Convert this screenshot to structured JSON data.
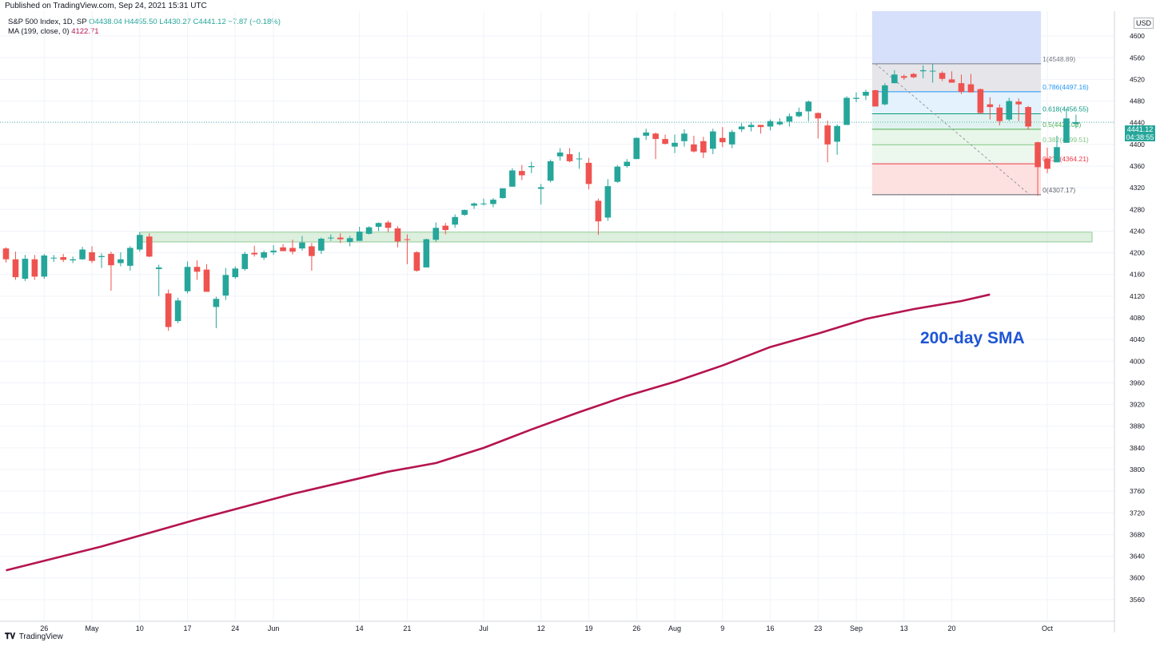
{
  "header": {
    "published": "Published on TradingView.com, Sep 24, 2021 15:31 UTC"
  },
  "legend": {
    "symbol": "S&P 500 Index, 1D, SP",
    "open": "O4438.04",
    "high": "H4455.50",
    "low": "L4430.27",
    "close": "C4441.12",
    "change": "−7.87 (−0.18%)",
    "ma_label": "MA (199, close, 0)",
    "ma_value": "4122.71"
  },
  "currency": "USD",
  "current_price": {
    "price": "4441.12",
    "countdown": "04:38:55"
  },
  "annotation": "200-day SMA",
  "footer": {
    "brand": "TradingView"
  },
  "colors": {
    "up": "#26a69a",
    "down": "#ef5350",
    "ma": "#b5144f",
    "annotation": "#1e55d6",
    "grid": "#f0f3fa"
  },
  "chart_data": {
    "type": "candlestick",
    "ylim": [
      3520,
      4640
    ],
    "y_ticks": [
      3560,
      3600,
      3640,
      3680,
      3720,
      3760,
      3800,
      3840,
      3880,
      3920,
      3960,
      4000,
      4040,
      4080,
      4120,
      4160,
      4200,
      4240,
      4280,
      4320,
      4360,
      4400,
      4440,
      4480,
      4520,
      4560,
      4600
    ],
    "x_tick_labels": [
      {
        "label": "26",
        "i": 4
      },
      {
        "label": "May",
        "i": 9
      },
      {
        "label": "10",
        "i": 14
      },
      {
        "label": "17",
        "i": 19
      },
      {
        "label": "24",
        "i": 24
      },
      {
        "label": "Jun",
        "i": 28
      },
      {
        "label": "14",
        "i": 37
      },
      {
        "label": "21",
        "i": 42
      },
      {
        "label": "Jul",
        "i": 50
      },
      {
        "label": "12",
        "i": 56
      },
      {
        "label": "19",
        "i": 61
      },
      {
        "label": "26",
        "i": 66
      },
      {
        "label": "Aug",
        "i": 70
      },
      {
        "label": "9",
        "i": 75
      },
      {
        "label": "16",
        "i": 80
      },
      {
        "label": "23",
        "i": 85
      },
      {
        "label": "Sep",
        "i": 89
      },
      {
        "label": "13",
        "i": 94
      },
      {
        "label": "20",
        "i": 99
      },
      {
        "label": "Oct",
        "i": 109
      }
    ],
    "candles": [
      {
        "o": 4208,
        "h": 4210,
        "l": 4182,
        "c": 4188
      },
      {
        "o": 4188,
        "h": 4202,
        "l": 4150,
        "c": 4155
      },
      {
        "o": 4152,
        "h": 4196,
        "l": 4148,
        "c": 4189
      },
      {
        "o": 4188,
        "h": 4196,
        "l": 4150,
        "c": 4156
      },
      {
        "o": 4156,
        "h": 4198,
        "l": 4152,
        "c": 4195
      },
      {
        "o": 4190,
        "h": 4196,
        "l": 4183,
        "c": 4191
      },
      {
        "o": 4192,
        "h": 4198,
        "l": 4183,
        "c": 4187
      },
      {
        "o": 4186,
        "h": 4193,
        "l": 4181,
        "c": 4188
      },
      {
        "o": 4188,
        "h": 4211,
        "l": 4187,
        "c": 4206
      },
      {
        "o": 4201,
        "h": 4212,
        "l": 4181,
        "c": 4185
      },
      {
        "o": 4192,
        "h": 4199,
        "l": 4172,
        "c": 4194
      },
      {
        "o": 4198,
        "h": 4202,
        "l": 4130,
        "c": 4177
      },
      {
        "o": 4181,
        "h": 4201,
        "l": 4175,
        "c": 4188
      },
      {
        "o": 4176,
        "h": 4212,
        "l": 4167,
        "c": 4209
      },
      {
        "o": 4206,
        "h": 4238,
        "l": 4202,
        "c": 4233
      },
      {
        "o": 4230,
        "h": 4236,
        "l": 4192,
        "c": 4193
      },
      {
        "o": 4170,
        "h": 4178,
        "l": 4120,
        "c": 4173
      },
      {
        "o": 4125,
        "h": 4132,
        "l": 4056,
        "c": 4063
      },
      {
        "o": 4074,
        "h": 4117,
        "l": 4070,
        "c": 4112
      },
      {
        "o": 4129,
        "h": 4184,
        "l": 4125,
        "c": 4174
      },
      {
        "o": 4174,
        "h": 4186,
        "l": 4150,
        "c": 4165
      },
      {
        "o": 4169,
        "h": 4179,
        "l": 4128,
        "c": 4128
      },
      {
        "o": 4100,
        "h": 4119,
        "l": 4061,
        "c": 4115
      },
      {
        "o": 4121,
        "h": 4172,
        "l": 4113,
        "c": 4159
      },
      {
        "o": 4155,
        "h": 4175,
        "l": 4152,
        "c": 4171
      },
      {
        "o": 4170,
        "h": 4202,
        "l": 4167,
        "c": 4198
      },
      {
        "o": 4200,
        "h": 4213,
        "l": 4193,
        "c": 4197
      },
      {
        "o": 4191,
        "h": 4204,
        "l": 4187,
        "c": 4201
      },
      {
        "o": 4201,
        "h": 4214,
        "l": 4196,
        "c": 4204
      },
      {
        "o": 4210,
        "h": 4216,
        "l": 4204,
        "c": 4203
      },
      {
        "o": 4209,
        "h": 4224,
        "l": 4197,
        "c": 4202
      },
      {
        "o": 4208,
        "h": 4231,
        "l": 4204,
        "c": 4219
      },
      {
        "o": 4212,
        "h": 4218,
        "l": 4167,
        "c": 4194
      },
      {
        "o": 4204,
        "h": 4228,
        "l": 4198,
        "c": 4226
      },
      {
        "o": 4227,
        "h": 4234,
        "l": 4222,
        "c": 4228
      },
      {
        "o": 4228,
        "h": 4236,
        "l": 4218,
        "c": 4225
      },
      {
        "o": 4220,
        "h": 4231,
        "l": 4212,
        "c": 4227
      },
      {
        "o": 4222,
        "h": 4248,
        "l": 4222,
        "c": 4239
      },
      {
        "o": 4235,
        "h": 4249,
        "l": 4234,
        "c": 4247
      },
      {
        "o": 4248,
        "h": 4256,
        "l": 4240,
        "c": 4255
      },
      {
        "o": 4256,
        "h": 4259,
        "l": 4238,
        "c": 4246
      },
      {
        "o": 4245,
        "h": 4249,
        "l": 4210,
        "c": 4221
      },
      {
        "o": 4225,
        "h": 4234,
        "l": 4179,
        "c": 4224
      },
      {
        "o": 4201,
        "h": 4203,
        "l": 4165,
        "c": 4167
      },
      {
        "o": 4173,
        "h": 4226,
        "l": 4173,
        "c": 4225
      },
      {
        "o": 4224,
        "h": 4256,
        "l": 4220,
        "c": 4246
      },
      {
        "o": 4250,
        "h": 4255,
        "l": 4234,
        "c": 4242
      },
      {
        "o": 4252,
        "h": 4271,
        "l": 4246,
        "c": 4266
      },
      {
        "o": 4270,
        "h": 4280,
        "l": 4268,
        "c": 4279
      },
      {
        "o": 4287,
        "h": 4293,
        "l": 4281,
        "c": 4291
      },
      {
        "o": 4291,
        "h": 4300,
        "l": 4287,
        "c": 4291
      },
      {
        "o": 4290,
        "h": 4301,
        "l": 4284,
        "c": 4298
      },
      {
        "o": 4301,
        "h": 4319,
        "l": 4300,
        "c": 4319
      },
      {
        "o": 4322,
        "h": 4356,
        "l": 4322,
        "c": 4352
      },
      {
        "o": 4351,
        "h": 4362,
        "l": 4334,
        "c": 4343
      },
      {
        "o": 4358,
        "h": 4368,
        "l": 4347,
        "c": 4360
      },
      {
        "o": 4318,
        "h": 4327,
        "l": 4289,
        "c": 4321
      },
      {
        "o": 4333,
        "h": 4372,
        "l": 4330,
        "c": 4369
      },
      {
        "o": 4378,
        "h": 4393,
        "l": 4370,
        "c": 4385
      },
      {
        "o": 4382,
        "h": 4393,
        "l": 4367,
        "c": 4369
      },
      {
        "o": 4374,
        "h": 4386,
        "l": 4355,
        "c": 4374
      },
      {
        "o": 4366,
        "h": 4375,
        "l": 4317,
        "c": 4327
      },
      {
        "o": 4296,
        "h": 4300,
        "l": 4233,
        "c": 4258
      },
      {
        "o": 4265,
        "h": 4336,
        "l": 4259,
        "c": 4323
      },
      {
        "o": 4331,
        "h": 4362,
        "l": 4329,
        "c": 4359
      },
      {
        "o": 4360,
        "h": 4373,
        "l": 4357,
        "c": 4368
      },
      {
        "o": 4373,
        "h": 4413,
        "l": 4373,
        "c": 4412
      },
      {
        "o": 4416,
        "h": 4429,
        "l": 4408,
        "c": 4422
      },
      {
        "o": 4420,
        "h": 4422,
        "l": 4373,
        "c": 4410
      },
      {
        "o": 4410,
        "h": 4418,
        "l": 4400,
        "c": 4401
      },
      {
        "o": 4396,
        "h": 4418,
        "l": 4384,
        "c": 4403
      },
      {
        "o": 4406,
        "h": 4428,
        "l": 4396,
        "c": 4420
      },
      {
        "o": 4400,
        "h": 4416,
        "l": 4385,
        "c": 4387
      },
      {
        "o": 4406,
        "h": 4414,
        "l": 4375,
        "c": 4385
      },
      {
        "o": 4392,
        "h": 4429,
        "l": 4382,
        "c": 4424
      },
      {
        "o": 4412,
        "h": 4432,
        "l": 4395,
        "c": 4404
      },
      {
        "o": 4400,
        "h": 4427,
        "l": 4393,
        "c": 4423
      },
      {
        "o": 4428,
        "h": 4439,
        "l": 4423,
        "c": 4433
      },
      {
        "o": 4432,
        "h": 4441,
        "l": 4424,
        "c": 4436
      },
      {
        "o": 4436,
        "h": 4436,
        "l": 4420,
        "c": 4432
      },
      {
        "o": 4433,
        "h": 4446,
        "l": 4426,
        "c": 4443
      },
      {
        "o": 4437,
        "h": 4448,
        "l": 4435,
        "c": 4442
      },
      {
        "o": 4442,
        "h": 4457,
        "l": 4433,
        "c": 4452
      },
      {
        "o": 4452,
        "h": 4468,
        "l": 4450,
        "c": 4460
      },
      {
        "o": 4461,
        "h": 4481,
        "l": 4443,
        "c": 4479
      },
      {
        "o": 4458,
        "h": 4459,
        "l": 4411,
        "c": 4448
      },
      {
        "o": 4435,
        "h": 4444,
        "l": 4367,
        "c": 4400
      },
      {
        "o": 4405,
        "h": 4437,
        "l": 4381,
        "c": 4434
      },
      {
        "o": 4436,
        "h": 4489,
        "l": 4436,
        "c": 4486
      },
      {
        "o": 4484,
        "h": 4496,
        "l": 4478,
        "c": 4486
      },
      {
        "o": 4490,
        "h": 4501,
        "l": 4482,
        "c": 4497
      },
      {
        "o": 4500,
        "h": 4501,
        "l": 4470,
        "c": 4470
      },
      {
        "o": 4474,
        "h": 4513,
        "l": 4472,
        "c": 4509
      },
      {
        "o": 4513,
        "h": 4537,
        "l": 4513,
        "c": 4529
      },
      {
        "o": 4526,
        "h": 4529,
        "l": 4519,
        "c": 4523
      },
      {
        "o": 4530,
        "h": 4532,
        "l": 4522,
        "c": 4524
      },
      {
        "o": 4535,
        "h": 4546,
        "l": 4522,
        "c": 4537
      },
      {
        "o": 4535,
        "h": 4549,
        "l": 4514,
        "c": 4536
      },
      {
        "o": 4532,
        "h": 4535,
        "l": 4517,
        "c": 4521
      },
      {
        "o": 4520,
        "h": 4535,
        "l": 4514,
        "c": 4514
      },
      {
        "o": 4513,
        "h": 4529,
        "l": 4493,
        "c": 4497
      },
      {
        "o": 4511,
        "h": 4530,
        "l": 4496,
        "c": 4496
      },
      {
        "o": 4502,
        "h": 4503,
        "l": 4456,
        "c": 4458
      },
      {
        "o": 4474,
        "h": 4487,
        "l": 4446,
        "c": 4469
      },
      {
        "o": 4468,
        "h": 4474,
        "l": 4435,
        "c": 4443
      },
      {
        "o": 4446,
        "h": 4486,
        "l": 4443,
        "c": 4480
      },
      {
        "o": 4479,
        "h": 4485,
        "l": 4443,
        "c": 4474
      },
      {
        "o": 4469,
        "h": 4471,
        "l": 4427,
        "c": 4433
      },
      {
        "o": 4404,
        "h": 4405,
        "l": 4305,
        "c": 4358
      },
      {
        "o": 4374,
        "h": 4394,
        "l": 4347,
        "c": 4355
      },
      {
        "o": 4367,
        "h": 4416,
        "l": 4367,
        "c": 4395
      },
      {
        "o": 4403,
        "h": 4465,
        "l": 4403,
        "c": 4448
      },
      {
        "o": 4438,
        "h": 4455,
        "l": 4430,
        "c": 4441
      }
    ],
    "ma_199": [
      {
        "i": 0,
        "v": 3614
      },
      {
        "i": 10,
        "v": 3658
      },
      {
        "i": 20,
        "v": 3708
      },
      {
        "i": 30,
        "v": 3755
      },
      {
        "i": 40,
        "v": 3796
      },
      {
        "i": 45,
        "v": 3812
      },
      {
        "i": 50,
        "v": 3840
      },
      {
        "i": 55,
        "v": 3874
      },
      {
        "i": 60,
        "v": 3906
      },
      {
        "i": 65,
        "v": 3936
      },
      {
        "i": 70,
        "v": 3962
      },
      {
        "i": 75,
        "v": 3992
      },
      {
        "i": 80,
        "v": 4026
      },
      {
        "i": 85,
        "v": 4051
      },
      {
        "i": 90,
        "v": 4078
      },
      {
        "i": 95,
        "v": 4096
      },
      {
        "i": 100,
        "v": 4111
      },
      {
        "i": 103,
        "v": 4123
      }
    ],
    "support_zone": {
      "low": 4220,
      "high": 4238,
      "start_i": 14
    },
    "fibonacci": {
      "start_i": 91,
      "end_i": 108,
      "levels": [
        {
          "label": "1(4548.89)",
          "v": 4548.89,
          "color": "#787b86"
        },
        {
          "label": "0.786(4497.16)",
          "v": 4497.16,
          "color": "#2196f3"
        },
        {
          "label": "0.618(4456.55)",
          "v": 4456.55,
          "color": "#089981"
        },
        {
          "label": "0.5(4428.03)",
          "v": 4428.03,
          "color": "#4caf50"
        },
        {
          "label": "0.382(4399.51)",
          "v": 4399.51,
          "color": "#81c784"
        },
        {
          "label": "0.236(4364.21)",
          "v": 4364.21,
          "color": "#f23645"
        },
        {
          "label": "0(4307.17)",
          "v": 4307.17,
          "color": "#5d606b"
        }
      ]
    }
  }
}
